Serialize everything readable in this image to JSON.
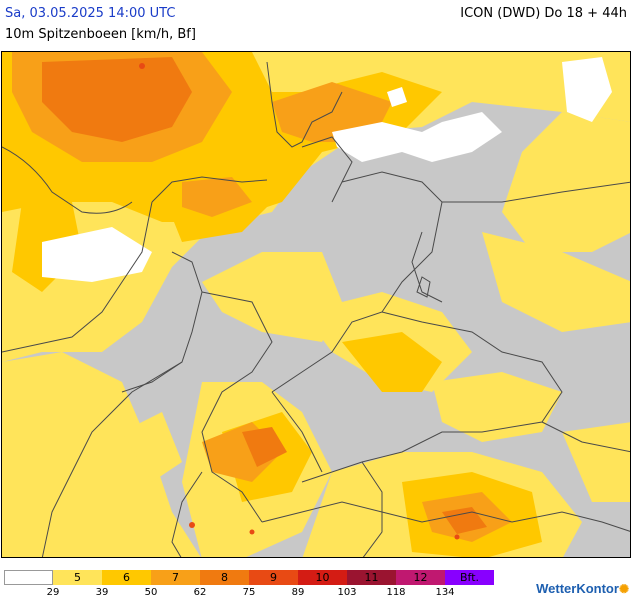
{
  "header": {
    "date": "Sa, 03.05.2025 14:00 UTC",
    "model": "ICON (DWD) Do 18 + 44h",
    "parameter": "10m Spitzenboeen [km/h, Bf]"
  },
  "legend": {
    "bft_labels": [
      "",
      "5",
      "6",
      "7",
      "8",
      "9",
      "10",
      "11",
      "12",
      "Bft."
    ],
    "colors": [
      "#ffffff",
      "#ffe45a",
      "#ffc800",
      "#f8a018",
      "#f07a10",
      "#e84a14",
      "#d41c14",
      "#9a1430",
      "#c01870",
      "#8800ff"
    ],
    "kmh_ticks": [
      "29",
      "39",
      "50",
      "62",
      "75",
      "89",
      "103",
      "118",
      "134"
    ]
  },
  "colors": {
    "land_base": "#c8c8c8",
    "sea_calm": "#ffffff",
    "border_lines": "#4a4a4a",
    "header_date": "#1a3cc8"
  },
  "brand": {
    "name": "WetterKontor",
    "icon": "wk-sun-icon"
  }
}
